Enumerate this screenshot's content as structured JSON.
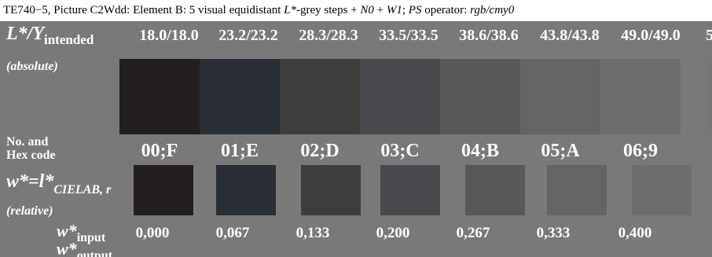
{
  "caption": {
    "prefix": "TE740−5, Picture C2Wdd: Element B: 5 visual equidistant ",
    "lstar": "L*",
    "mid": "-grey steps + ",
    "n0": "N0",
    "plus": " + ",
    "w1": "W1",
    "semi": "; ",
    "ps": "PS",
    "op": " operator: ",
    "mode": "rgb/cmy0"
  },
  "labels": {
    "lstar_main": "L*/Y",
    "lstar_sub": "intended",
    "absolute": "(absolute)",
    "no_and": "No. and",
    "hex_code": "Hex code",
    "w_main": "w*=l*",
    "w_sub": "CIELAB, r",
    "relative": "(relative)",
    "w_input_main": "w*",
    "w_input_sub": "input",
    "w_output_main": "w*",
    "w_output_sub": "output"
  },
  "columns": [
    {
      "header": "18.0/18.0",
      "code": "00;F",
      "w": "0,000",
      "big_color": "#231f20",
      "small_color": "#231f20"
    },
    {
      "header": "23.2/23.2",
      "code": "01;E",
      "w": "0,067",
      "big_color": "#292e34",
      "small_color": "#292e34"
    },
    {
      "header": "28.3/28.3",
      "code": "02;D",
      "w": "0,133",
      "big_color": "#3d3d3b",
      "small_color": "#3d3d3b"
    },
    {
      "header": "33.5/33.5",
      "code": "03;C",
      "w": "0,200",
      "big_color": "#48494d",
      "small_color": "#48494d"
    },
    {
      "header": "38.6/38.6",
      "code": "04;B",
      "w": "0,267",
      "big_color": "#595758",
      "small_color": "#595758"
    },
    {
      "header": "43.8/43.8",
      "code": "05;A",
      "w": "0,333",
      "big_color": "#656464",
      "small_color": "#656464"
    },
    {
      "header": "49.0/49.0",
      "code": "06;9",
      "w": "0,400",
      "big_color": "#6e6e6f",
      "small_color": "#6e6e6f"
    }
  ],
  "cut_off": {
    "header": "5",
    "color": "#777777"
  }
}
